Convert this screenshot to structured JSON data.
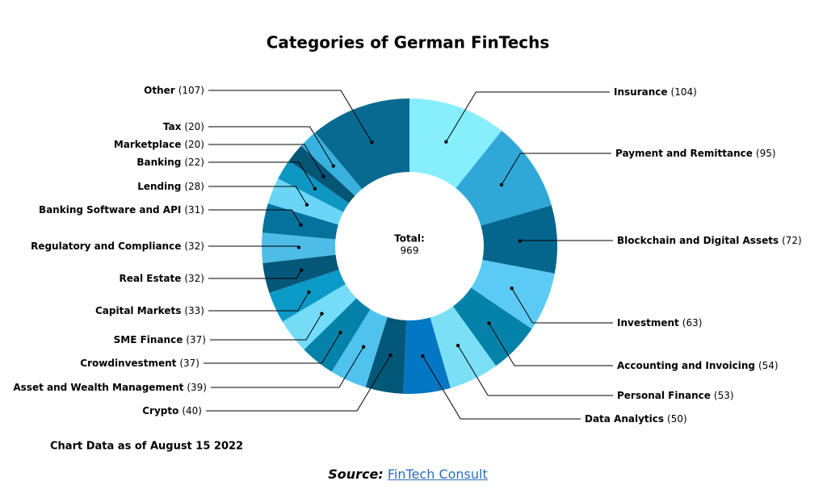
{
  "chart_data": {
    "type": "donut",
    "title": "Categories of German FinTechs",
    "center_label": "Total:",
    "total": 969,
    "categories": [
      "Insurance",
      "Payment and Remittance",
      "Blockchain and Digital Assets",
      "Investment",
      "Accounting and Invoicing",
      "Personal Finance",
      "Data Analytics",
      "Crypto",
      "Asset and Wealth Management",
      "Crowdinvestment",
      "SME Finance",
      "Capital Markets",
      "Real Estate",
      "Regulatory and Compliance",
      "Banking Software and API",
      "Lending",
      "Banking",
      "Marketplace",
      "Tax",
      "Other"
    ],
    "values": [
      104,
      95,
      72,
      63,
      54,
      53,
      50,
      40,
      39,
      37,
      37,
      33,
      32,
      32,
      31,
      28,
      22,
      20,
      20,
      107
    ],
    "value_labels": [
      "(104)",
      "(95)",
      "(72)",
      "(63)",
      "(54)",
      "(53)",
      "(50)",
      "(40)",
      "(39)",
      "(37)",
      "(37)",
      "(33)",
      "(32)",
      "(32)",
      "(31)",
      "(28)",
      "(22)",
      "(20)",
      "(20)",
      "(107)"
    ],
    "colors": [
      "#87eefc",
      "#2fa8d8",
      "#05668d",
      "#5bcbf5",
      "#0582a9",
      "#7be0f5",
      "#0477c4",
      "#03587a",
      "#4fc3ee",
      "#0582a9",
      "#74dcf7",
      "#0b9ac8",
      "#06587a",
      "#4dbde8",
      "#05729e",
      "#6ad5f6",
      "#0f97c4",
      "#055575",
      "#39b1de",
      "#086a91"
    ]
  },
  "note": "Chart Data as of August 15 2022",
  "source": {
    "label": "Source:",
    "link": "FinTech Consult"
  }
}
